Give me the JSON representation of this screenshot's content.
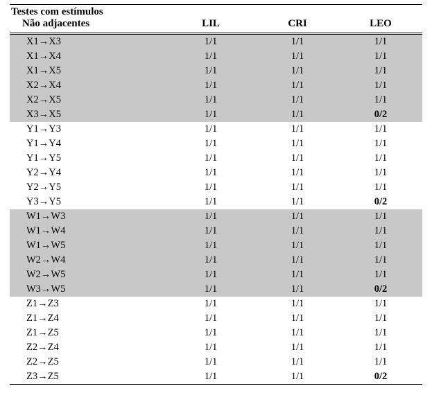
{
  "header": {
    "title_line1": "Testes com estímulos",
    "title_line2": "Não adjacentes",
    "col_lil": "LIL",
    "col_cri": "CRI",
    "col_leo": "LEO"
  },
  "arrow": "→",
  "sections": [
    {
      "shaded": true,
      "rows": [
        {
          "left": "X1",
          "right": "X3",
          "lil": "1/1",
          "cri": "1/1",
          "leo": "1/1",
          "leo_bold": false
        },
        {
          "left": "X1",
          "right": "X4",
          "lil": "1/1",
          "cri": "1/1",
          "leo": "1/1",
          "leo_bold": false
        },
        {
          "left": "X1",
          "right": "X5",
          "lil": "1/1",
          "cri": "1/1",
          "leo": "1/1",
          "leo_bold": false
        },
        {
          "left": "X2",
          "right": "X4",
          "lil": "1/1",
          "cri": "1/1",
          "leo": "1/1",
          "leo_bold": false
        },
        {
          "left": "X2",
          "right": "X5",
          "lil": "1/1",
          "cri": "1/1",
          "leo": "1/1",
          "leo_bold": false
        },
        {
          "left": "X3",
          "right": "X5",
          "lil": "1/1",
          "cri": "1/1",
          "leo": "0/2",
          "leo_bold": true
        }
      ]
    },
    {
      "shaded": false,
      "rows": [
        {
          "left": "Y1",
          "right": "Y3",
          "lil": "1/1",
          "cri": "1/1",
          "leo": "1/1",
          "leo_bold": false
        },
        {
          "left": "Y1",
          "right": "Y4",
          "lil": "1/1",
          "cri": "1/1",
          "leo": "1/1",
          "leo_bold": false
        },
        {
          "left": "Y1",
          "right": "Y5",
          "lil": "1/1",
          "cri": "1/1",
          "leo": "1/1",
          "leo_bold": false
        },
        {
          "left": "Y2",
          "right": "Y4",
          "lil": "1/1",
          "cri": "1/1",
          "leo": "1/1",
          "leo_bold": false
        },
        {
          "left": "Y2",
          "right": "Y5",
          "lil": "1/1",
          "cri": "1/1",
          "leo": "1/1",
          "leo_bold": false
        },
        {
          "left": "Y3",
          "right": "Y5",
          "lil": "1/1",
          "cri": "1/1",
          "leo": "0/2",
          "leo_bold": true
        }
      ]
    },
    {
      "shaded": true,
      "rows": [
        {
          "left": "W1",
          "right": "W3",
          "lil": "1/1",
          "cri": "1/1",
          "leo": "1/1",
          "leo_bold": false
        },
        {
          "left": "W1",
          "right": "W4",
          "lil": "1/1",
          "cri": "1/1",
          "leo": "1/1",
          "leo_bold": false
        },
        {
          "left": "W1",
          "right": "W5",
          "lil": "1/1",
          "cri": "1/1",
          "leo": "1/1",
          "leo_bold": false
        },
        {
          "left": "W2",
          "right": "W4",
          "lil": "1/1",
          "cri": "1/1",
          "leo": "1/1",
          "leo_bold": false
        },
        {
          "left": "W2",
          "right": "W5",
          "lil": "1/1",
          "cri": "1/1",
          "leo": "1/1",
          "leo_bold": false
        },
        {
          "left": "W3",
          "right": "W5",
          "lil": "1/1",
          "cri": "1/1",
          "leo": "0/2",
          "leo_bold": true
        }
      ]
    },
    {
      "shaded": false,
      "rows": [
        {
          "left": "Z1",
          "right": "Z3",
          "lil": "1/1",
          "cri": "1/1",
          "leo": "1/1",
          "leo_bold": false
        },
        {
          "left": "Z1",
          "right": "Z4",
          "lil": "1/1",
          "cri": "1/1",
          "leo": "1/1",
          "leo_bold": false
        },
        {
          "left": "Z1",
          "right": "Z5",
          "lil": "1/1",
          "cri": "1/1",
          "leo": "1/1",
          "leo_bold": false
        },
        {
          "left": "Z2",
          "right": "Z4",
          "lil": "1/1",
          "cri": "1/1",
          "leo": "1/1",
          "leo_bold": false
        },
        {
          "left": "Z2",
          "right": "Z5",
          "lil": "1/1",
          "cri": "1/1",
          "leo": "1/1",
          "leo_bold": false
        },
        {
          "left": "Z3",
          "right": "Z5",
          "lil": "1/1",
          "cri": "1/1",
          "leo": "0/2",
          "leo_bold": true
        }
      ]
    }
  ]
}
